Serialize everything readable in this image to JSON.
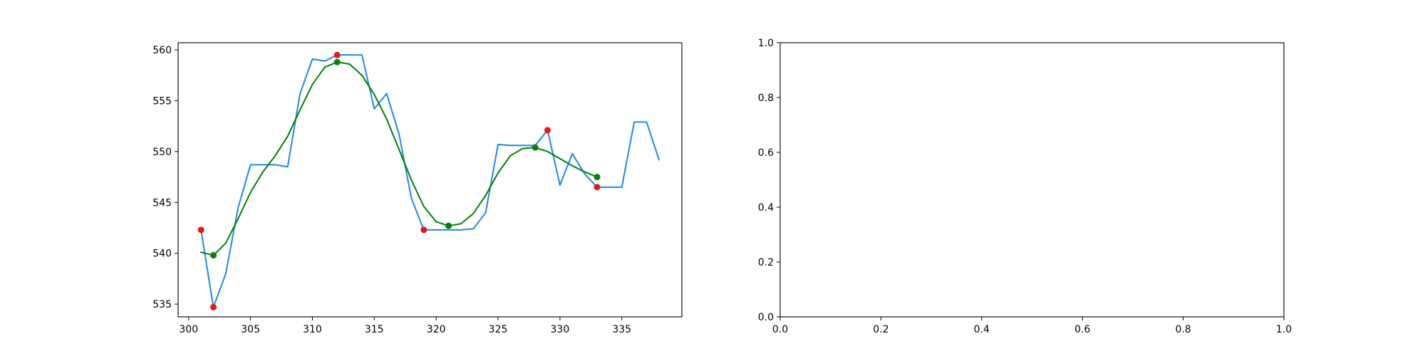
{
  "figure": {
    "background": "#ffffff"
  },
  "chart_data": [
    {
      "type": "line",
      "title": "",
      "xlabel": "",
      "ylabel": "",
      "xlim": [
        299.15,
        339.85
      ],
      "ylim": [
        533.75,
        560.7
      ],
      "grid": false,
      "x_ticks": [
        300,
        305,
        310,
        315,
        320,
        325,
        330,
        335
      ],
      "x_tick_labels": [
        "300",
        "305",
        "310",
        "315",
        "320",
        "325",
        "330",
        "335"
      ],
      "y_ticks": [
        535,
        540,
        545,
        550,
        555,
        560
      ],
      "y_tick_labels": [
        "535",
        "540",
        "545",
        "550",
        "555",
        "560"
      ],
      "series": [
        {
          "kind": "line",
          "color": "#1e88e5",
          "x": [
            301,
            302,
            303,
            304,
            305,
            306,
            307,
            308,
            309,
            310,
            311,
            312,
            313,
            314,
            315,
            316,
            317,
            318,
            319,
            320,
            321,
            322,
            323,
            324,
            325,
            326,
            327,
            328,
            329,
            330,
            331,
            332,
            333,
            334,
            335,
            336,
            337,
            338
          ],
          "y": [
            542.3,
            534.7,
            538.0,
            544.5,
            548.7,
            548.7,
            548.7,
            548.5,
            555.7,
            559.1,
            558.9,
            559.5,
            559.5,
            559.5,
            554.2,
            555.7,
            551.7,
            545.4,
            542.3,
            542.3,
            542.3,
            542.3,
            542.4,
            544.0,
            550.7,
            550.6,
            550.6,
            550.6,
            552.1,
            546.7,
            549.8,
            547.8,
            546.5,
            546.5,
            546.5,
            552.9,
            552.9,
            549.2
          ]
        },
        {
          "kind": "line",
          "color": "#008000",
          "x": [
            301,
            302,
            303,
            304,
            305,
            306,
            307,
            308,
            309,
            310,
            311,
            312,
            313,
            314,
            315,
            316,
            317,
            318,
            319,
            320,
            321,
            322,
            323,
            324,
            325,
            326,
            327,
            328,
            329,
            330,
            331,
            332,
            333
          ],
          "y": [
            540.1,
            539.8,
            541.0,
            543.4,
            546.0,
            548.0,
            549.6,
            551.5,
            554.1,
            556.6,
            558.3,
            558.8,
            558.6,
            557.5,
            555.6,
            553.2,
            550.2,
            547.2,
            544.6,
            543.1,
            542.7,
            542.9,
            543.9,
            545.7,
            547.9,
            549.6,
            550.3,
            550.4,
            550.0,
            549.3,
            548.6,
            548.0,
            547.5
          ]
        },
        {
          "kind": "scatter",
          "color": "#e8161b",
          "x": [
            301,
            302,
            312,
            319,
            329,
            333
          ],
          "y": [
            542.3,
            534.7,
            559.5,
            542.3,
            552.1,
            546.5
          ]
        },
        {
          "kind": "scatter",
          "color": "#0a7d0a",
          "x": [
            302,
            312,
            321,
            328,
            333
          ],
          "y": [
            539.8,
            558.8,
            542.7,
            550.4,
            547.5
          ]
        }
      ]
    },
    {
      "type": "line",
      "title": "",
      "xlabel": "",
      "ylabel": "",
      "xlim": [
        0,
        1
      ],
      "ylim": [
        0,
        1
      ],
      "grid": false,
      "x_ticks": [
        0,
        0.2,
        0.4,
        0.6,
        0.8,
        1.0
      ],
      "x_tick_labels": [
        "0.0",
        "0.2",
        "0.4",
        "0.6",
        "0.8",
        "1.0"
      ],
      "y_ticks": [
        0,
        0.2,
        0.4,
        0.6,
        0.8,
        1.0
      ],
      "y_tick_labels": [
        "0.0",
        "0.2",
        "0.4",
        "0.6",
        "0.8",
        "1.0"
      ],
      "series": []
    }
  ]
}
